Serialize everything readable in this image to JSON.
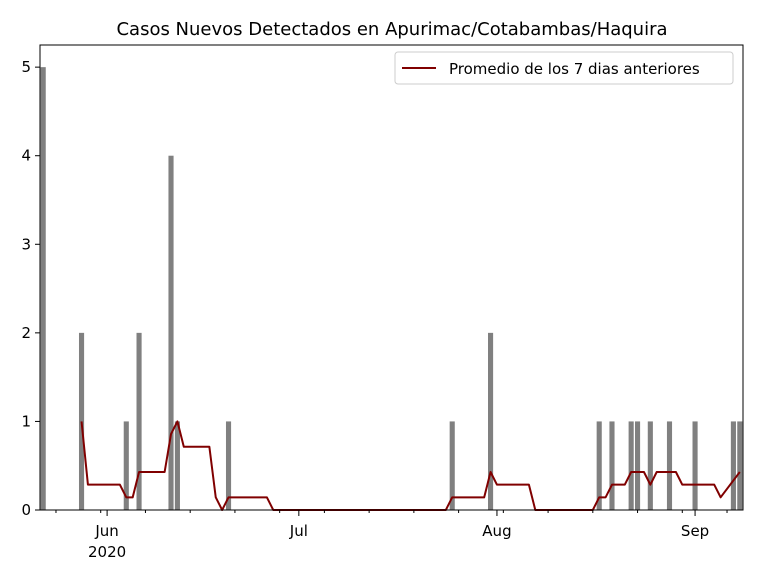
{
  "chart_data": {
    "type": "bar",
    "title": "Casos Nuevos Detectados en Apurimac/Cotabambas/Haquira",
    "xlabel": "",
    "ylabel": "",
    "ylim": [
      0,
      5.25
    ],
    "yticks": [
      "0",
      "1",
      "2",
      "3",
      "4",
      "5"
    ],
    "xticks": [
      {
        "label": "Jun",
        "sublabel": "2020",
        "date": "2020-06-01"
      },
      {
        "label": "Jul",
        "sublabel": "",
        "date": "2020-07-01"
      },
      {
        "label": "Aug",
        "sublabel": "",
        "date": "2020-08-01"
      },
      {
        "label": "Sep",
        "sublabel": "",
        "date": "2020-09-01"
      }
    ],
    "x_range": [
      "2020-05-22",
      "2020-09-08"
    ],
    "legend": {
      "placement": "top-right",
      "entries": [
        "Promedio de los 7 dias anteriores"
      ]
    },
    "grid": false,
    "colors": {
      "bars": "#808080",
      "line": "#800000"
    },
    "series": [
      {
        "kind": "bar",
        "points": [
          {
            "x": "2020-05-22",
            "y": 5
          },
          {
            "x": "2020-05-28",
            "y": 2
          },
          {
            "x": "2020-06-04",
            "y": 1
          },
          {
            "x": "2020-06-06",
            "y": 2
          },
          {
            "x": "2020-06-11",
            "y": 4
          },
          {
            "x": "2020-06-12",
            "y": 1
          },
          {
            "x": "2020-06-20",
            "y": 1
          },
          {
            "x": "2020-07-25",
            "y": 1
          },
          {
            "x": "2020-07-31",
            "y": 2
          },
          {
            "x": "2020-08-17",
            "y": 1
          },
          {
            "x": "2020-08-19",
            "y": 1
          },
          {
            "x": "2020-08-22",
            "y": 1
          },
          {
            "x": "2020-08-23",
            "y": 1
          },
          {
            "x": "2020-08-25",
            "y": 1
          },
          {
            "x": "2020-08-28",
            "y": 1
          },
          {
            "x": "2020-09-01",
            "y": 1
          },
          {
            "x": "2020-09-07",
            "y": 1
          },
          {
            "x": "2020-09-08",
            "y": 1
          }
        ]
      },
      {
        "kind": "line",
        "name": "Promedio de los 7 dias anteriores",
        "points": [
          {
            "x": "2020-05-28",
            "y": 1.0
          },
          {
            "x": "2020-05-29",
            "y": 0.286
          },
          {
            "x": "2020-06-02",
            "y": 0.286
          },
          {
            "x": "2020-06-03",
            "y": 0.286
          },
          {
            "x": "2020-06-04",
            "y": 0.143
          },
          {
            "x": "2020-06-05",
            "y": 0.143
          },
          {
            "x": "2020-06-06",
            "y": 0.429
          },
          {
            "x": "2020-06-10",
            "y": 0.429
          },
          {
            "x": "2020-06-11",
            "y": 0.857
          },
          {
            "x": "2020-06-12",
            "y": 1.0
          },
          {
            "x": "2020-06-13",
            "y": 0.714
          },
          {
            "x": "2020-06-17",
            "y": 0.714
          },
          {
            "x": "2020-06-18",
            "y": 0.143
          },
          {
            "x": "2020-06-19",
            "y": 0.0
          },
          {
            "x": "2020-06-20",
            "y": 0.143
          },
          {
            "x": "2020-06-26",
            "y": 0.143
          },
          {
            "x": "2020-06-27",
            "y": 0.0
          },
          {
            "x": "2020-07-24",
            "y": 0.0
          },
          {
            "x": "2020-07-25",
            "y": 0.143
          },
          {
            "x": "2020-07-30",
            "y": 0.143
          },
          {
            "x": "2020-07-31",
            "y": 0.429
          },
          {
            "x": "2020-08-01",
            "y": 0.286
          },
          {
            "x": "2020-08-06",
            "y": 0.286
          },
          {
            "x": "2020-08-07",
            "y": 0.0
          },
          {
            "x": "2020-08-16",
            "y": 0.0
          },
          {
            "x": "2020-08-17",
            "y": 0.143
          },
          {
            "x": "2020-08-18",
            "y": 0.143
          },
          {
            "x": "2020-08-19",
            "y": 0.286
          },
          {
            "x": "2020-08-21",
            "y": 0.286
          },
          {
            "x": "2020-08-22",
            "y": 0.429
          },
          {
            "x": "2020-08-24",
            "y": 0.429
          },
          {
            "x": "2020-08-25",
            "y": 0.286
          },
          {
            "x": "2020-08-26",
            "y": 0.429
          },
          {
            "x": "2020-08-29",
            "y": 0.429
          },
          {
            "x": "2020-08-30",
            "y": 0.286
          },
          {
            "x": "2020-09-04",
            "y": 0.286
          },
          {
            "x": "2020-09-05",
            "y": 0.143
          },
          {
            "x": "2020-09-08",
            "y": 0.429
          }
        ]
      }
    ]
  }
}
